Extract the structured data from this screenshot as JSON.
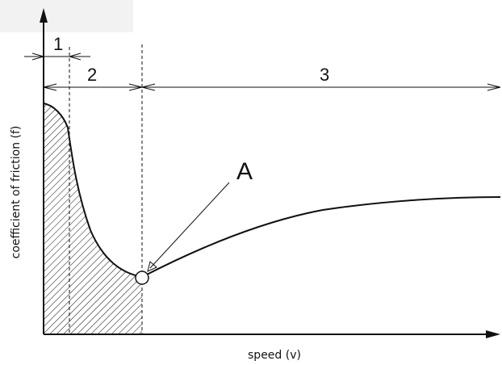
{
  "diagram": {
    "region_labels": [
      "1",
      "2",
      "3"
    ],
    "point_label": "A",
    "x_axis_label": "speed (v)",
    "y_axis_label": "coefficient of friction (f)",
    "colors": {
      "ink": "#111111",
      "background": "#ffffff",
      "corner_block": "#f2f2f2"
    }
  }
}
